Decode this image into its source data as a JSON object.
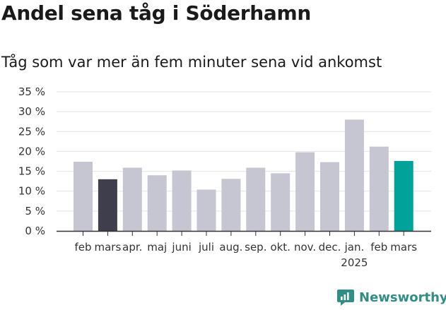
{
  "title": "Andel sena tåg i Söderhamn",
  "subtitle": "Tåg som var mer än fem minuter sena vid ankomst",
  "brand": {
    "name": "Newsworthy",
    "icon": "newsworthy-logo-icon",
    "color": "#2f8f86"
  },
  "chart_data": {
    "type": "bar",
    "title": "Andel sena tåg i Söderhamn",
    "subtitle": "Tåg som var mer än fem minuter sena vid ankomst",
    "categories": [
      "feb",
      "mars",
      "apr.",
      "maj",
      "juni",
      "juli",
      "aug.",
      "sep.",
      "okt.",
      "nov.",
      "dec.",
      "jan.",
      "feb",
      "mars"
    ],
    "year_label": "2025",
    "year_label_under_index": 11,
    "values": [
      17.4,
      13.0,
      15.9,
      14.0,
      15.2,
      10.4,
      13.1,
      15.9,
      14.5,
      19.8,
      17.3,
      28.0,
      21.2,
      17.6
    ],
    "colors": [
      "#c6c6d2",
      "#3e3e4d",
      "#c6c6d2",
      "#c6c6d2",
      "#c6c6d2",
      "#c6c6d2",
      "#c6c6d2",
      "#c6c6d2",
      "#c6c6d2",
      "#c6c6d2",
      "#c6c6d2",
      "#c6c6d2",
      "#c6c6d2",
      "#00a39a"
    ],
    "yticks": [
      "0 %",
      "5 %",
      "10 %",
      "15 %",
      "20 %",
      "25 %",
      "30 %",
      "35 %"
    ],
    "ylim": [
      0,
      35
    ],
    "grid": true,
    "xlabel": "",
    "ylabel": ""
  }
}
